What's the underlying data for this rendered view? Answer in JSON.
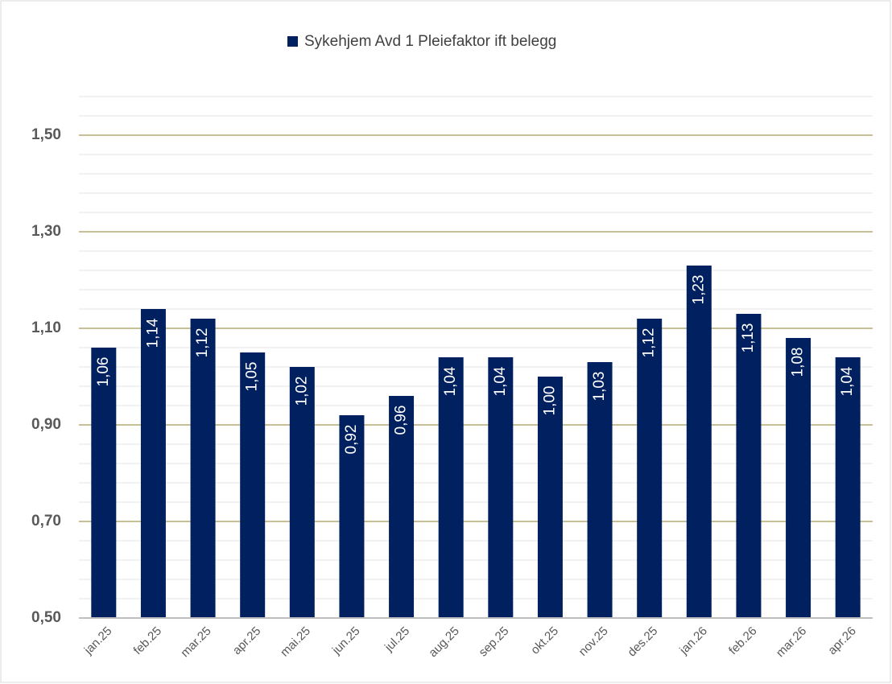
{
  "chart_data": {
    "type": "bar",
    "categories": [
      "jan.25",
      "feb.25",
      "mar.25",
      "apr.25",
      "mai.25",
      "jun.25",
      "jul.25",
      "aug.25",
      "sep.25",
      "okt.25",
      "nov.25",
      "des.25",
      "jan.26",
      "feb.26",
      "mar.26",
      "apr.26"
    ],
    "series": [
      {
        "name": "Sykehjem Avd 1 Pleiefaktor ift belegg",
        "color": "#002060",
        "values": [
          1.06,
          1.14,
          1.12,
          1.05,
          1.02,
          0.92,
          0.96,
          1.04,
          1.04,
          1.0,
          1.03,
          1.12,
          1.23,
          1.13,
          1.08,
          1.04
        ],
        "value_labels": [
          "1,06",
          "1,14",
          "1,12",
          "1,05",
          "1,02",
          "0,92",
          "0,96",
          "1,04",
          "1,04",
          "1,00",
          "1,03",
          "1,12",
          "1,23",
          "1,13",
          "1,08",
          "1,04"
        ]
      }
    ],
    "ylim": [
      0.5,
      1.58
    ],
    "yticks": [
      {
        "value": 0.5,
        "label": "0,50"
      },
      {
        "value": 0.7,
        "label": "0,70"
      },
      {
        "value": 0.9,
        "label": "0,90"
      },
      {
        "value": 1.1,
        "label": "1,10"
      },
      {
        "value": 1.3,
        "label": "1,30"
      },
      {
        "value": 1.5,
        "label": "1,50"
      }
    ],
    "yminorticks": [
      0.54,
      0.58,
      0.62,
      0.66,
      0.74,
      0.78,
      0.82,
      0.86,
      0.94,
      0.98,
      1.02,
      1.06,
      1.14,
      1.18,
      1.22,
      1.26,
      1.34,
      1.38,
      1.42,
      1.46,
      1.54,
      1.58
    ],
    "grid": true,
    "legend": "top"
  }
}
